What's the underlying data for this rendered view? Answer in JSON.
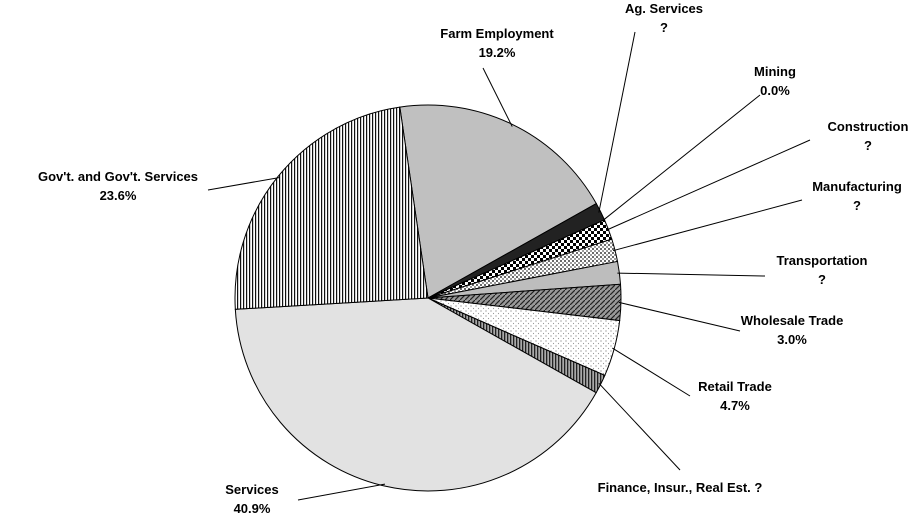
{
  "chart_data": {
    "type": "pie",
    "categories": [
      "Farm Employment",
      "Ag. Services",
      "Mining",
      "Construction",
      "Manufacturing",
      "Transportation",
      "Wholesale Trade",
      "Retail Trade",
      "Finance, Insur., Real Est.",
      "Services",
      "Gov't. and Gov't. Services"
    ],
    "values": [
      19.2,
      1.5,
      0.0,
      1.7,
      1.9,
      1.9,
      3.0,
      4.7,
      1.6,
      40.9,
      23.6
    ],
    "value_labels": [
      "19.2%",
      "?",
      "0.0%",
      "?",
      "?",
      "?",
      "3.0%",
      "4.7%",
      "?",
      "40.9%",
      "23.6%"
    ]
  }
}
